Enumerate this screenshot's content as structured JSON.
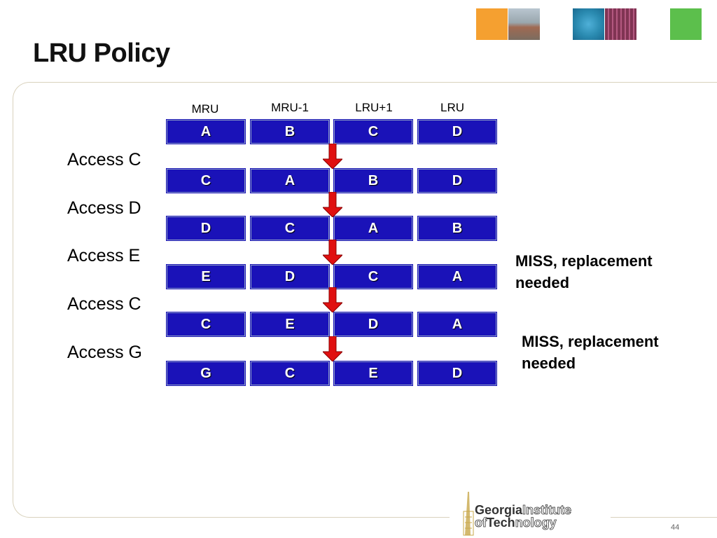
{
  "slide": {
    "title": "LRU Policy",
    "page_number": "44"
  },
  "columns": [
    "MRU",
    "MRU-1",
    "LRU+1",
    "LRU"
  ],
  "rows": [
    [
      "A",
      "B",
      "C",
      "D"
    ],
    [
      "C",
      "A",
      "B",
      "D"
    ],
    [
      "D",
      "C",
      "A",
      "B"
    ],
    [
      "E",
      "D",
      "C",
      "A"
    ],
    [
      "C",
      "E",
      "D",
      "A"
    ],
    [
      "G",
      "C",
      "E",
      "D"
    ]
  ],
  "accesses": [
    "Access C",
    "Access D",
    "Access E",
    "Access C",
    "Access G"
  ],
  "notes": [
    {
      "line1": "MISS, replacement",
      "line2": "needed"
    },
    {
      "line1": "MISS, replacement",
      "line2": "needed"
    }
  ],
  "logo": {
    "line1_bold": "Georgia",
    "line1_outline": "Institute",
    "line2_outline": "of",
    "line2_bold": "Tech",
    "line2_outline_end": "nology"
  },
  "colors": {
    "cell_fill": "#1a12b8",
    "arrow": "#e01010",
    "tile_orange": "#f5a030",
    "tile_blue": "#2a8ab0",
    "tile_green": "#5cbf4c",
    "logo_gold": "#c8a84a"
  }
}
